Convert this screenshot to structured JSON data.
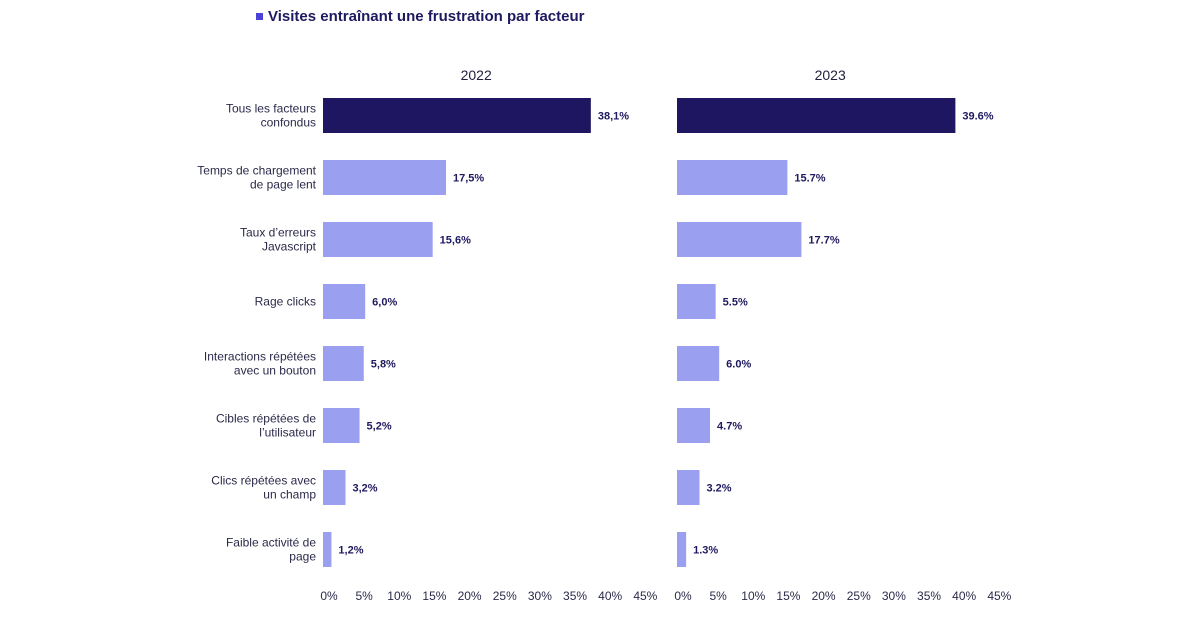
{
  "chart_data": {
    "type": "bar",
    "orientation": "horizontal",
    "legend": "Visites entraînant une frustration par facteur",
    "categories": [
      "Tous les facteurs\nconfondus",
      "Temps de chargement\nde page lent",
      "Taux d’erreurs\nJavascript",
      "Rage clicks",
      "Interactions répétées\navec un bouton",
      "Cibles répétées de\nl’utilisateur",
      "Clics répétées avec\nun champ",
      "Faible activité de\npage"
    ],
    "panels": [
      {
        "title": "2022",
        "values": [
          38.1,
          17.5,
          15.6,
          6.0,
          5.8,
          5.2,
          3.2,
          1.2
        ],
        "labels": [
          "38,1%",
          "17,5%",
          "15,6%",
          "6,0%",
          "5,8%",
          "5,2%",
          "3,2%",
          "1,2%"
        ]
      },
      {
        "title": "2023",
        "values": [
          39.6,
          15.7,
          17.7,
          5.5,
          6.0,
          4.7,
          3.2,
          1.3
        ],
        "labels": [
          "39.6%",
          "15.7%",
          "17.7%",
          "5.5%",
          "6.0%",
          "4.7%",
          "3.2%",
          "1.3%"
        ]
      }
    ],
    "xlim": [
      0,
      45
    ],
    "xticks": [
      "0%",
      "5%",
      "10%",
      "15%",
      "20%",
      "25%",
      "30%",
      "35%",
      "40%",
      "45%"
    ],
    "grid": false,
    "colors": {
      "highlight": "#1e1660",
      "bar": "#9b9ff0",
      "legend_marker": "#4b43d6"
    }
  }
}
